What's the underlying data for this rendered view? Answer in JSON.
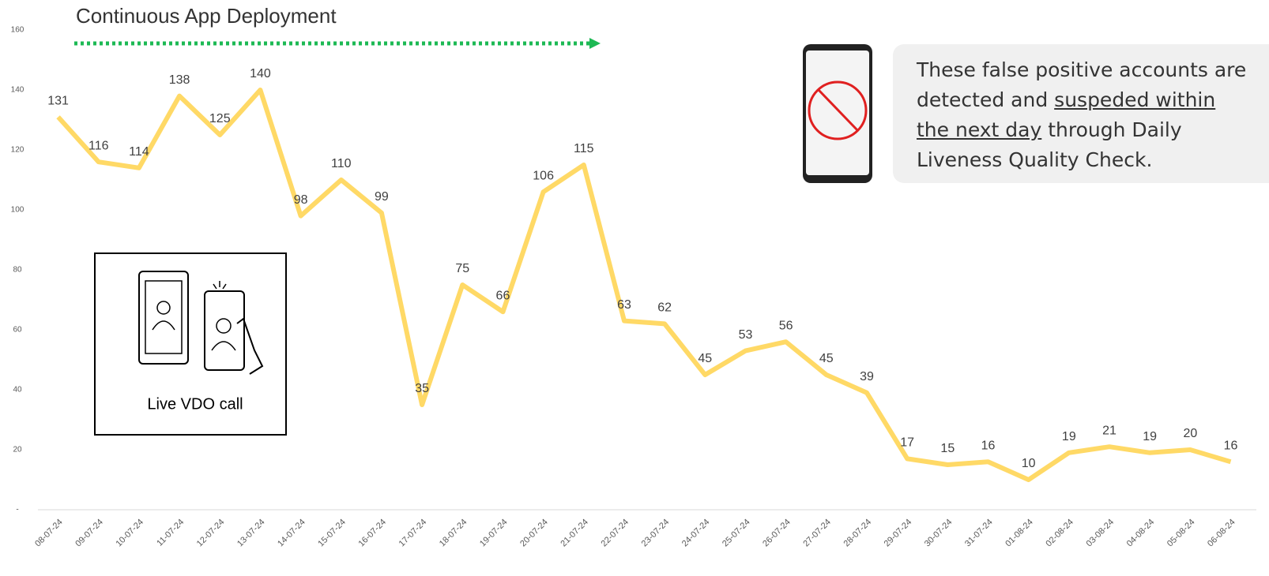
{
  "chart_data": {
    "type": "line",
    "title": "Continuous App Deployment",
    "categories": [
      "08-07-24",
      "09-07-24",
      "10-07-24",
      "11-07-24",
      "12-07-24",
      "13-07-24",
      "14-07-24",
      "15-07-24",
      "16-07-24",
      "17-07-24",
      "18-07-24",
      "19-07-24",
      "20-07-24",
      "21-07-24",
      "22-07-24",
      "23-07-24",
      "24-07-24",
      "25-07-24",
      "26-07-24",
      "27-07-24",
      "28-07-24",
      "29-07-24",
      "30-07-24",
      "31-07-24",
      "01-08-24",
      "02-08-24",
      "03-08-24",
      "04-08-24",
      "05-08-24",
      "06-08-24"
    ],
    "values": [
      131,
      116,
      114,
      138,
      125,
      140,
      98,
      110,
      99,
      35,
      75,
      66,
      106,
      115,
      63,
      62,
      45,
      53,
      56,
      45,
      39,
      17,
      15,
      16,
      10,
      19,
      21,
      19,
      20,
      16
    ],
    "color": "#ffd966",
    "ylim": [
      0,
      160
    ],
    "yticks": [
      {
        "value": 0,
        "label": "-"
      },
      20,
      40,
      60,
      80,
      100,
      120,
      140,
      160
    ],
    "grid": false,
    "callout": [
      "These false positive accounts are",
      "detected and ",
      "suspeded within",
      "the next day",
      " through Daily",
      "Liveness Quality Check."
    ],
    "image_caption": "Live VDO call"
  }
}
